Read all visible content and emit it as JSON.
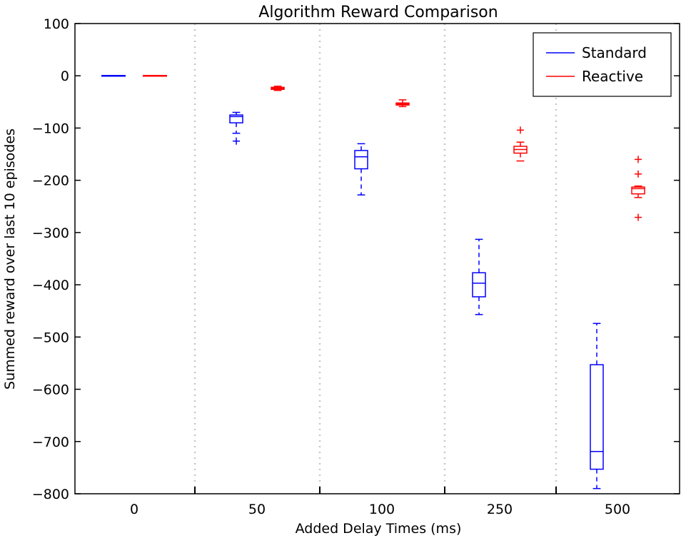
{
  "chart_data": {
    "type": "box",
    "title": "Algorithm Reward Comparison",
    "xlabel": "Added Delay Times (ms)",
    "ylabel": "Summed reward over last 10 episodes",
    "ylim": [
      -800,
      100
    ],
    "yticks": [
      "100",
      "0",
      "−100",
      "−200",
      "−300",
      "−400",
      "−500",
      "−600",
      "−700",
      "−800"
    ],
    "yticks_values": [
      100,
      0,
      -100,
      -200,
      -300,
      -400,
      -500,
      -600,
      -700,
      -800
    ],
    "categories": [
      "0",
      "50",
      "100",
      "250",
      "500"
    ],
    "grid": "vertical dotted separators between groups",
    "legend": {
      "placement": "top-right",
      "entries": [
        "Standard",
        "Reactive"
      ]
    },
    "series": [
      {
        "name": "Standard",
        "color": "#0000ff",
        "boxes": [
          {
            "whisker_low": 0,
            "q1": 0,
            "median": 0,
            "q3": 0,
            "whisker_high": 0,
            "outliers": []
          },
          {
            "whisker_low": -110,
            "q1": -90,
            "median": -78,
            "q3": -75,
            "whisker_high": -70,
            "outliers": [
              -125
            ]
          },
          {
            "whisker_low": -228,
            "q1": -178,
            "median": -155,
            "q3": -143,
            "whisker_high": -130,
            "outliers": []
          },
          {
            "whisker_low": -457,
            "q1": -423,
            "median": -397,
            "q3": -377,
            "whisker_high": -313,
            "outliers": []
          },
          {
            "whisker_low": -790,
            "q1": -753,
            "median": -719,
            "q3": -553,
            "whisker_high": -474,
            "outliers": []
          }
        ]
      },
      {
        "name": "Reactive",
        "color": "#ff0000",
        "boxes": [
          {
            "whisker_low": 0,
            "q1": 0,
            "median": 0,
            "q3": 0,
            "whisker_high": 0,
            "outliers": []
          },
          {
            "whisker_low": -28,
            "q1": -26,
            "median": -24,
            "q3": -22,
            "whisker_high": -20,
            "outliers": []
          },
          {
            "whisker_low": -59,
            "q1": -56,
            "median": -54,
            "q3": -52,
            "whisker_high": -46,
            "outliers": []
          },
          {
            "whisker_low": -163,
            "q1": -148,
            "median": -141,
            "q3": -135,
            "whisker_high": -127,
            "outliers": [
              -104
            ]
          },
          {
            "whisker_low": -233,
            "q1": -226,
            "median": -216,
            "q3": -213,
            "whisker_high": -211,
            "outliers": [
              -160,
              -188,
              -271
            ]
          }
        ]
      }
    ]
  }
}
